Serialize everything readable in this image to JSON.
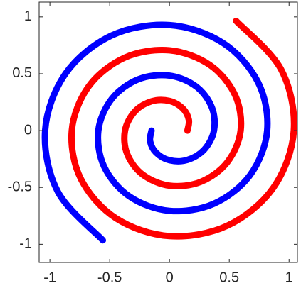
{
  "chart_data": {
    "type": "line",
    "series": [
      {
        "color": "#0000ff",
        "x": [
          -0.15,
          -0.162,
          -0.112,
          0,
          0.149,
          0.29,
          0.372,
          0.354,
          0.224,
          0,
          -0.261,
          -0.483,
          -0.595,
          -0.547,
          -0.335,
          0,
          0.372,
          0.675,
          0.817,
          0.74,
          0.446,
          0,
          -0.483,
          -0.869,
          -1.04,
          -0.933,
          -0.557
        ],
        "values": [
          0,
          -0.094,
          -0.194,
          -0.261,
          -0.258,
          -0.168,
          0,
          0.205,
          0.387,
          0.484,
          0.451,
          0.279,
          0,
          -0.316,
          -0.579,
          -0.706,
          -0.643,
          -0.39,
          0,
          0.427,
          0.772,
          0.928,
          0.837,
          0.502,
          0,
          -0.539,
          -0.965
        ]
      },
      {
        "color": "#ff0000",
        "x": [
          0.15,
          0.162,
          0.112,
          0,
          -0.149,
          -0.29,
          -0.372,
          -0.354,
          -0.224,
          0,
          0.261,
          0.483,
          0.595,
          0.547,
          0.335,
          0,
          -0.372,
          -0.675,
          -0.817,
          -0.74,
          -0.446,
          0,
          0.483,
          0.869,
          1.04,
          0.933,
          0.557
        ],
        "values": [
          0,
          0.094,
          0.194,
          0.261,
          0.258,
          0.168,
          0,
          -0.205,
          -0.387,
          -0.484,
          -0.451,
          -0.279,
          0,
          0.316,
          0.579,
          0.706,
          0.643,
          0.39,
          0,
          -0.427,
          -0.772,
          -0.928,
          -0.837,
          -0.502,
          0,
          0.539,
          0.965
        ]
      }
    ],
    "xlim": [
      -1.09,
      1.07
    ],
    "ylim": [
      -1.16,
      1.13
    ],
    "xticks": [
      -1,
      -0.5,
      0,
      0.5,
      1
    ],
    "yticks": [
      -1,
      -0.5,
      0,
      0.5,
      1
    ]
  }
}
